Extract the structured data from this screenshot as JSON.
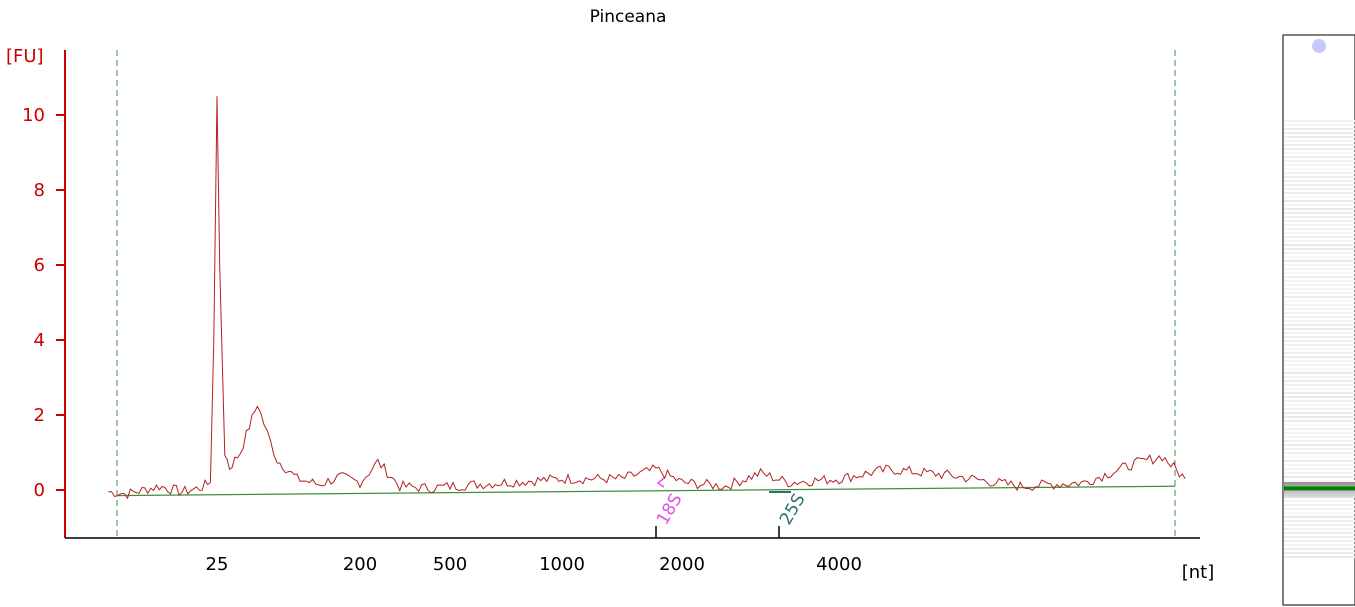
{
  "chart_data": {
    "type": "line",
    "title": "Pinceana",
    "xlabel": "[nt]",
    "ylabel": "[FU]",
    "ylim": [
      -1.3,
      11.5
    ],
    "y_ticks": [
      0,
      2,
      4,
      6,
      8,
      10
    ],
    "x_tick_labels": [
      "25",
      "200",
      "500",
      "1000",
      "2000",
      "4000"
    ],
    "x_scale": "nonlinear (electropherogram size ladder)",
    "grid": false,
    "colors": {
      "signal": "#b22222",
      "baseline": "#3f8f3f",
      "y_axis": "#cc0000",
      "window_lines": "#3f8f3f",
      "marker_18s": "#e64fe6",
      "marker_25s": "#2f6f6f",
      "gel_band": "#008000"
    },
    "series": [
      {
        "points": [
          {
            "nt": 5,
            "fu": -0.05
          },
          {
            "nt": 8,
            "fu": -0.1
          },
          {
            "nt": 12,
            "fu": 0.1
          },
          {
            "nt": 16,
            "fu": -0.05
          },
          {
            "nt": 20,
            "fu": 0.05
          },
          {
            "nt": 23,
            "fu": 0.2
          },
          {
            "nt": 24,
            "fu": 4.0
          },
          {
            "nt": 25,
            "fu": 10.5
          },
          {
            "nt": 26,
            "fu": 6.0
          },
          {
            "nt": 28,
            "fu": 1.0
          },
          {
            "nt": 30,
            "fu": 0.6
          },
          {
            "nt": 35,
            "fu": 1.0
          },
          {
            "nt": 40,
            "fu": 1.7
          },
          {
            "nt": 45,
            "fu": 2.3
          },
          {
            "nt": 52,
            "fu": 1.5
          },
          {
            "nt": 60,
            "fu": 0.8
          },
          {
            "nt": 80,
            "fu": 0.3
          },
          {
            "nt": 110,
            "fu": 0.15
          },
          {
            "nt": 150,
            "fu": 0.35
          },
          {
            "nt": 200,
            "fu": 0.2
          },
          {
            "nt": 240,
            "fu": 0.75
          },
          {
            "nt": 300,
            "fu": 0.1
          },
          {
            "nt": 400,
            "fu": 0.05
          },
          {
            "nt": 500,
            "fu": 0.1
          },
          {
            "nt": 700,
            "fu": 0.2
          },
          {
            "nt": 1000,
            "fu": 0.3
          },
          {
            "nt": 1400,
            "fu": 0.3
          },
          {
            "nt": 1700,
            "fu": 0.55
          },
          {
            "nt": 2000,
            "fu": 0.2
          },
          {
            "nt": 2500,
            "fu": 0.1
          },
          {
            "nt": 3000,
            "fu": 0.45
          },
          {
            "nt": 3400,
            "fu": 0.2
          },
          {
            "nt": 4000,
            "fu": 0.3
          },
          {
            "nt": 5000,
            "fu": 0.55
          },
          {
            "nt": 6500,
            "fu": 0.4
          },
          {
            "nt": 9000,
            "fu": 0.1
          },
          {
            "nt": 12000,
            "fu": 0.2
          },
          {
            "nt": 15000,
            "fu": 0.7
          },
          {
            "nt": 17000,
            "fu": 0.9
          },
          {
            "nt": 18500,
            "fu": 0.3
          }
        ]
      }
    ],
    "baseline": {
      "start_fu": -0.15,
      "end_fu": 0.1
    },
    "window_markers_nt": [
      7,
      18000
    ],
    "ribosomal_markers": [
      {
        "label": "18S",
        "nt": 1700
      },
      {
        "label": "25S",
        "nt": 3300
      }
    ]
  },
  "gel": {
    "band_position_fraction": 0.82,
    "marker_dot_color": "#c8c8ff"
  }
}
